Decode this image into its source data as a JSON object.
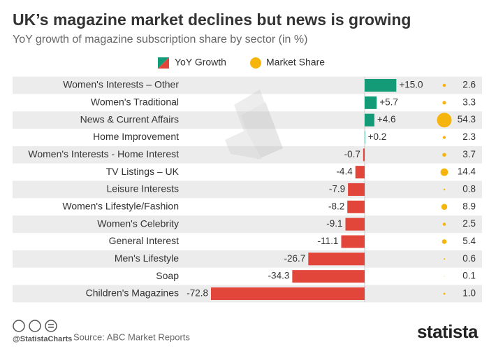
{
  "chart_data": {
    "type": "bar",
    "orientation": "horizontal",
    "title": "UK’s magazine market declines but news is growing",
    "subtitle": "YoY growth of magazine subscription share by sector (in %)",
    "categories": [
      "Women's Interests – Other",
      "Women's Traditional",
      "News & Current Affairs",
      "Home Improvement",
      "Women's Interests - Home Interest",
      "TV Listings – UK",
      "Leisure Interests",
      "Women's Lifestyle/Fashion",
      "Women's Celebrity",
      "General Interest",
      "Men's Lifestyle",
      "Soap",
      "Children's Magazines"
    ],
    "series": [
      {
        "name": "YoY Growth",
        "color": "#139b78",
        "negative_color": "#e2463a",
        "values": [
          15.0,
          5.7,
          4.6,
          0.2,
          -0.7,
          -4.4,
          -7.9,
          -8.2,
          -9.1,
          -11.1,
          -26.7,
          -34.3,
          -72.8
        ],
        "value_labels": [
          "+15.0",
          "+5.7",
          "+4.6",
          "+0.2",
          "-0.7",
          "-4.4",
          "-7.9",
          "-8.2",
          "-9.1",
          "-11.1",
          "-26.7",
          "-34.3",
          "-72.8"
        ]
      },
      {
        "name": "Market Share",
        "color": "#f6b50d",
        "marker": "circle",
        "values": [
          2.6,
          3.3,
          54.3,
          2.3,
          3.7,
          14.4,
          0.8,
          8.9,
          2.5,
          5.4,
          0.6,
          0.1,
          1.0
        ],
        "value_labels": [
          "2.6",
          "3.3",
          "54.3",
          "2.3",
          "3.7",
          "14.4",
          "0.8",
          "8.9",
          "2.5",
          "5.4",
          "0.6",
          "0.1",
          "1.0"
        ]
      }
    ],
    "credit": "@StatistaCharts",
    "source": "Source: ABC Market Reports",
    "logo": "statista"
  }
}
